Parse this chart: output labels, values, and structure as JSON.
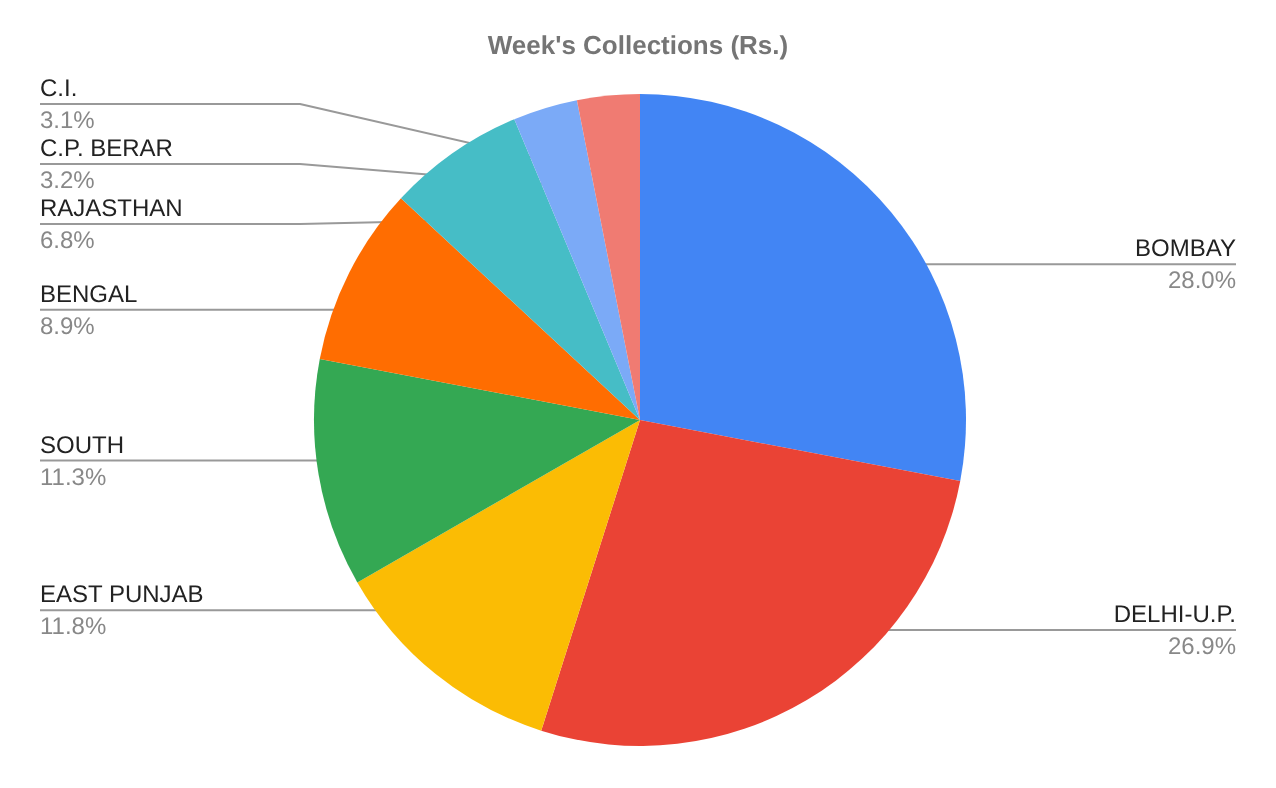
{
  "chart_data": {
    "type": "pie",
    "title": "Week's Collections (Rs.)",
    "categories": [
      "BOMBAY",
      "DELHI-U.P.",
      "EAST PUNJAB",
      "SOUTH",
      "BENGAL",
      "RAJASTHAN",
      "C.P. BERAR",
      "C.I."
    ],
    "values": [
      28.0,
      26.9,
      11.8,
      11.3,
      8.9,
      6.8,
      3.2,
      3.1
    ],
    "colors": [
      "#4285f4",
      "#ea4335",
      "#fbbc04",
      "#34a853",
      "#ff6d01",
      "#46bdc6",
      "#7baaf7",
      "#f07b72"
    ],
    "value_labels": [
      "28.0%",
      "26.9%",
      "11.8%",
      "11.3%",
      "8.9%",
      "6.8%",
      "3.2%",
      "3.1%"
    ]
  }
}
